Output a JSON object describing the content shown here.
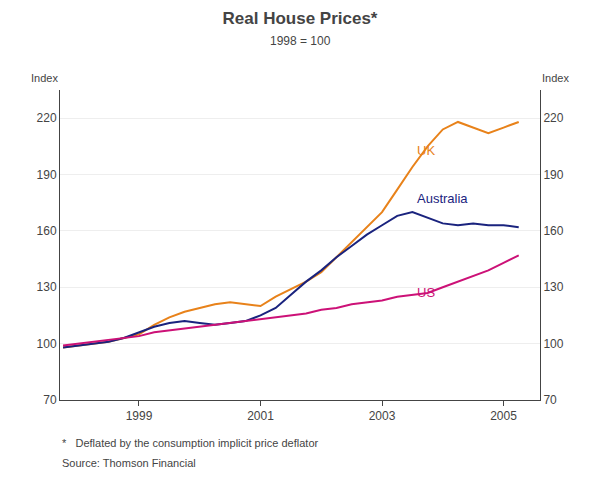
{
  "chart_data": {
    "type": "line",
    "title": "Real House Prices*",
    "subtitle": "1998 = 100",
    "ylabel": "Index",
    "y2label": "Index",
    "footnotes": [
      "*   Deflated by the consumption implicit price deflator",
      "Source: Thomson Financial"
    ],
    "x": [
      1997.75,
      1998.0,
      1998.25,
      1998.5,
      1998.75,
      1999.0,
      1999.25,
      1999.5,
      1999.75,
      2000.0,
      2000.25,
      2000.5,
      2000.75,
      2001.0,
      2001.25,
      2001.5,
      2001.75,
      2002.0,
      2002.25,
      2002.5,
      2002.75,
      2003.0,
      2003.25,
      2003.5,
      2003.75,
      2004.0,
      2004.25,
      2004.5,
      2004.75,
      2005.0,
      2005.25
    ],
    "series": [
      {
        "name": "UK",
        "color": "#E8821A",
        "values": [
          98,
          99,
          100,
          101,
          103,
          105,
          110,
          114,
          117,
          119,
          121,
          122,
          121,
          120,
          125,
          129,
          133,
          138,
          146,
          154,
          162,
          170,
          182,
          194,
          205,
          214,
          218,
          215,
          212,
          215,
          218
        ]
      },
      {
        "name": "Australia",
        "color": "#1A237E",
        "values": [
          98,
          99,
          100,
          101,
          103,
          106,
          109,
          111,
          112,
          111,
          110,
          111,
          112,
          115,
          119,
          126,
          133,
          139,
          146,
          152,
          158,
          163,
          168,
          170,
          167,
          164,
          163,
          164,
          163,
          163,
          162
        ]
      },
      {
        "name": "US",
        "color": "#CC1177",
        "values": [
          99,
          100,
          101,
          102,
          103,
          104,
          106,
          107,
          108,
          109,
          110,
          111,
          112,
          113,
          114,
          115,
          116,
          118,
          119,
          121,
          122,
          123,
          125,
          126,
          127,
          130,
          133,
          136,
          139,
          143,
          147
        ]
      }
    ],
    "annotations": [
      {
        "text": "UK",
        "x": 2003.55,
        "y": 198,
        "color": "#E8821A"
      },
      {
        "text": "Australia",
        "x": 2003.55,
        "y": 172,
        "color": "#1A237E"
      },
      {
        "text": "US",
        "x": 2003.55,
        "y": 122,
        "color": "#CC1177"
      }
    ],
    "xlim": [
      1997.7,
      2005.6
    ],
    "xticks": [
      1999,
      2001,
      2003,
      2005
    ],
    "ylim": [
      70,
      235
    ],
    "yticks": [
      70,
      100,
      130,
      160,
      190,
      220
    ],
    "y2lim": [
      70,
      235
    ],
    "y2ticks": [
      70,
      100,
      130,
      160,
      190,
      220
    ],
    "grid": true
  }
}
